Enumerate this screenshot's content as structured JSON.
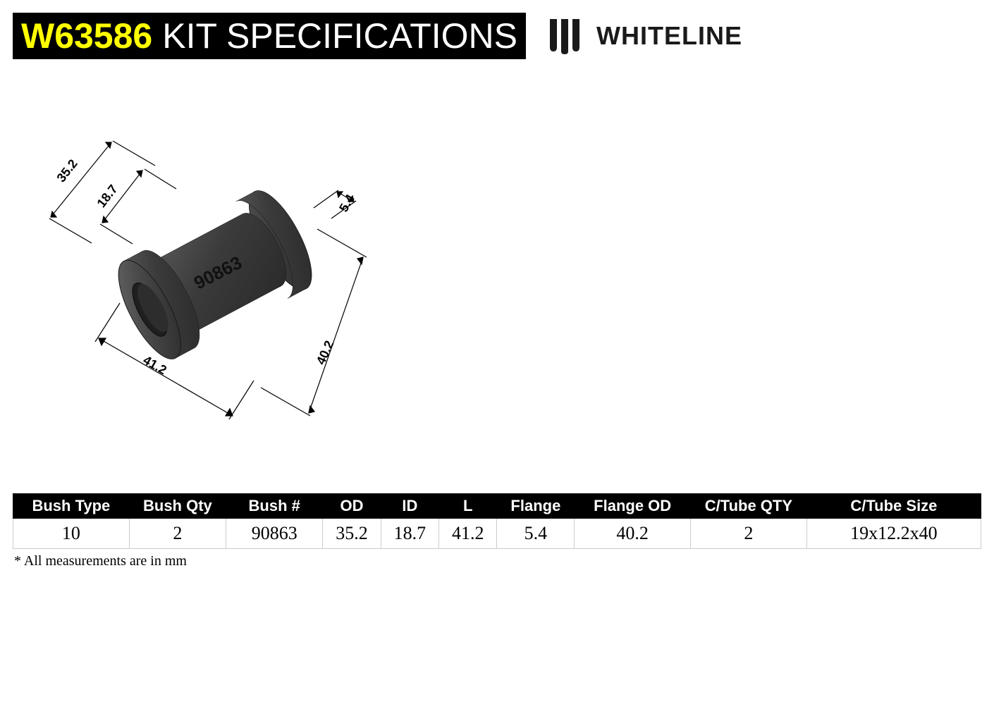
{
  "header": {
    "sku": "W63586",
    "title": "KIT SPECIFICATIONS",
    "brand_name": "WHITELINE"
  },
  "diagram": {
    "part_number": "90863",
    "dimensions": {
      "od": "35.2",
      "id": "18.7",
      "length": "41.2",
      "flange": "5.4",
      "flange_od": "40.2"
    },
    "body_color": "#3b3b3b",
    "body_dark": "#2a2a2a",
    "body_light": "#555555",
    "line_color": "#000000"
  },
  "table": {
    "columns": [
      "Bush Type",
      "Bush Qty",
      "Bush #",
      "OD",
      "ID",
      "L",
      "Flange",
      "Flange OD",
      "C/Tube QTY",
      "C/Tube Size"
    ],
    "col_widths_pct": [
      12,
      10,
      10,
      6,
      6,
      6,
      8,
      12,
      12,
      18
    ],
    "rows": [
      [
        "10",
        "2",
        "90863",
        "35.2",
        "18.7",
        "41.2",
        "5.4",
        "40.2",
        "2",
        "19x12.2x40"
      ]
    ],
    "footnote": "* All measurements are in mm",
    "header_bg": "#000000",
    "header_fg": "#ffffff",
    "cell_border": "#cccccc"
  }
}
